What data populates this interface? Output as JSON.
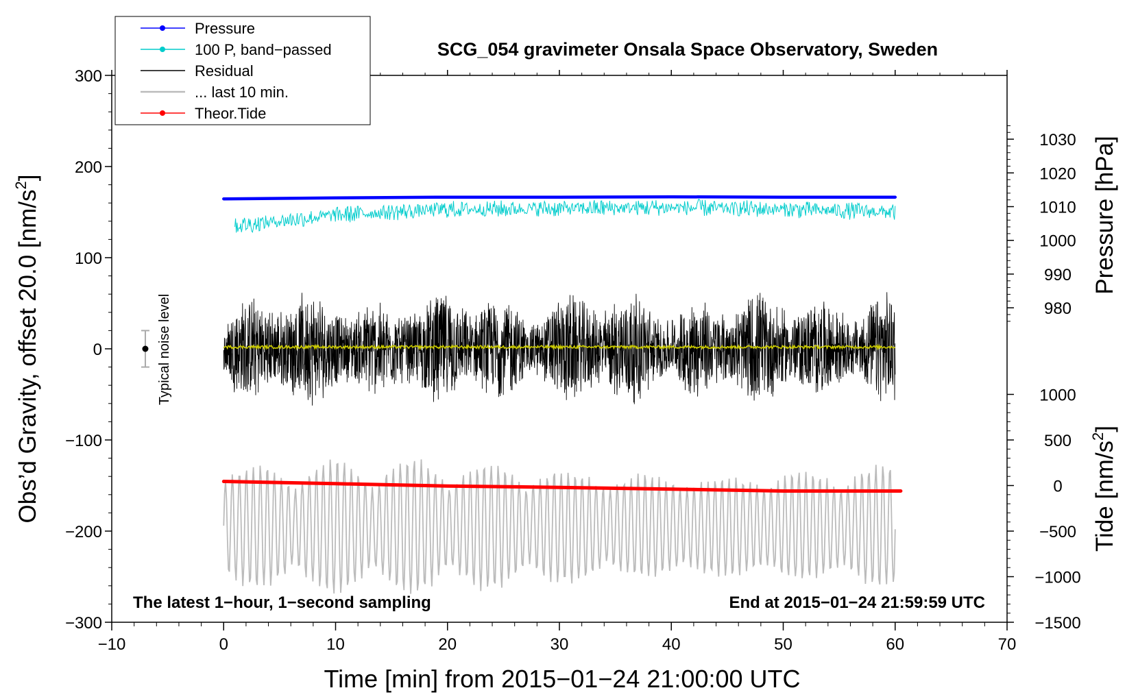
{
  "chart_data": {
    "type": "line",
    "title": "SCG_054 gravimeter Onsala Space Observatory, Sweden",
    "xlabel": "Time [min] from 2015−01−24 21:00:00 UTC",
    "ylabel_left": "Obs’d Gravity, offset 20.0 [nm/s",
    "ylabel_left_sup": "2",
    "ylabel_left_end": "]",
    "ylabel_right_pressure": "Pressure [hPa]",
    "ylabel_right_tide": "Tide [nm/s",
    "ylabel_right_tide_sup": "2",
    "ylabel_right_tide_end": "]",
    "xlim": [
      -10,
      70
    ],
    "ylim_left": [
      -300,
      300
    ],
    "x_ticks": [
      "−10",
      "0",
      "10",
      "20",
      "30",
      "40",
      "50",
      "60",
      "70"
    ],
    "x_tick_values": [
      -10,
      0,
      10,
      20,
      30,
      40,
      50,
      60,
      70
    ],
    "y_ticks_left": [
      "300",
      "200",
      "100",
      "0",
      "−100",
      "−200",
      "−300"
    ],
    "y_tick_values_left": [
      300,
      200,
      100,
      0,
      -100,
      -200,
      -300
    ],
    "pressure_axis": {
      "ticks": [
        "1030",
        "1020",
        "1010",
        "1000",
        "990",
        "980"
      ],
      "tick_values": [
        1030,
        1020,
        1010,
        1000,
        990,
        980
      ],
      "left_equiv_of_980hPa": 45,
      "left_units_per_hPa": 3.7
    },
    "tide_axis": {
      "ticks": [
        "1000",
        "500",
        "0",
        "−500",
        "−1000",
        "−1500"
      ],
      "tick_values": [
        1000,
        500,
        0,
        -500,
        -1000,
        -1500
      ],
      "left_equiv_of_0": -150,
      "left_units_per_nms2": 0.1
    },
    "legend": {
      "position": "top-left",
      "entries": [
        {
          "label": "Pressure",
          "color": "#0000ff",
          "marker": "dot"
        },
        {
          "label": "100 P, band−passed",
          "color": "#00cccc",
          "marker": "dot"
        },
        {
          "label": "Residual",
          "color": "#000000",
          "marker": "none"
        },
        {
          "label": "... last 10 min.",
          "color": "#bbbbbb",
          "marker": "none"
        },
        {
          "label": "Theor.Tide",
          "color": "#ff0000",
          "marker": "dot"
        }
      ]
    },
    "series": [
      {
        "name": "Pressure",
        "color": "#0000ff",
        "axis": "pressure",
        "x": [
          0,
          10,
          20,
          30,
          40,
          50,
          60
        ],
        "values": [
          1012.3,
          1012.6,
          1012.8,
          1012.8,
          1012.9,
          1012.8,
          1012.8
        ]
      },
      {
        "name": "100 P, band−passed",
        "color": "#00cccc",
        "axis": "left",
        "x_range": [
          1,
          60
        ],
        "center": [
          135,
          147,
          153,
          154,
          155,
          153,
          150
        ],
        "center_x": [
          1,
          10,
          20,
          30,
          40,
          50,
          60
        ],
        "amplitude": 8
      },
      {
        "name": "Residual",
        "color": "#000000",
        "axis": "left",
        "x_range": [
          0,
          60
        ],
        "amplitude_range": [
          -92,
          92
        ]
      },
      {
        "name": "Residual (smoothed)",
        "color": "#cccc00",
        "axis": "left",
        "x_range": [
          0,
          60
        ],
        "center": 2
      },
      {
        "name": "... last 10 min.",
        "color": "#bbbbbb",
        "axis": "left",
        "x_range": [
          0,
          60
        ],
        "center": -195,
        "amplitude_range": [
          -270,
          -105
        ]
      },
      {
        "name": "Theor.Tide",
        "color": "#ff0000",
        "axis": "tide",
        "x": [
          0,
          10,
          20,
          30,
          40,
          50,
          60.5
        ],
        "values": [
          45,
          20,
          -5,
          -20,
          -40,
          -60,
          -60
        ]
      }
    ],
    "noise_marker": {
      "label": "Typical noise level",
      "x": -7,
      "y": 0,
      "error": 20
    },
    "annotations": [
      {
        "text": "The latest 1−hour, 1−second sampling",
        "position": "bottom-left"
      },
      {
        "text": "End at 2015−01−24 21:59:59 UTC",
        "position": "bottom-right"
      }
    ]
  }
}
